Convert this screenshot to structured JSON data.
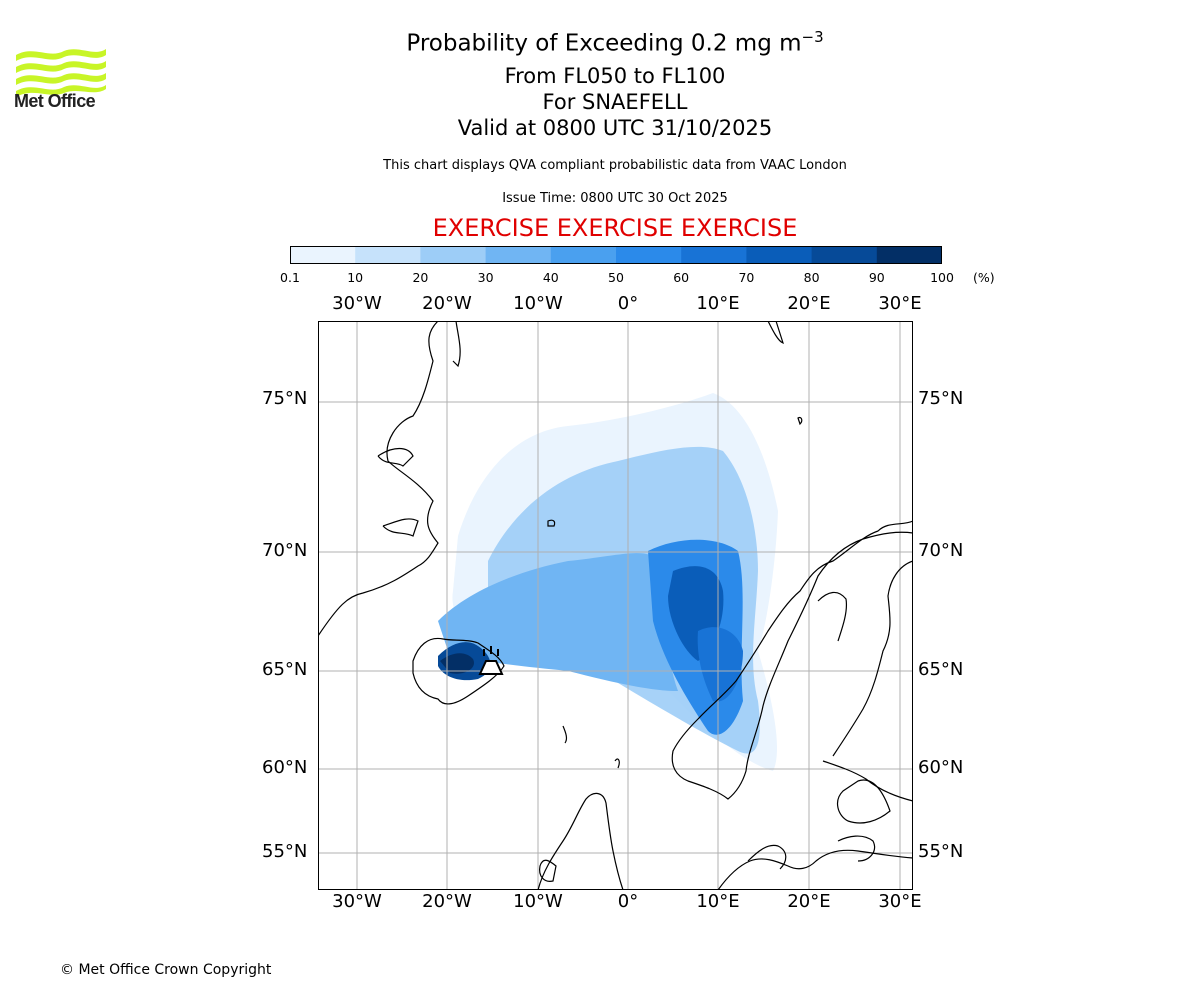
{
  "header": {
    "logo_text": "Met Office",
    "title_prefix": "Probability of Exceeding 0.2 mg m",
    "title_sup": "−3",
    "subtitle_levels": "From FL050 to FL100",
    "subtitle_volcano": "For SNAEFELL",
    "subtitle_valid": "Valid at 0800 UTC 31/10/2025",
    "description": "This chart displays QVA compliant probabilistic data from VAAC London",
    "issue_time": "Issue Time: 0800 UTC 30 Oct 2025",
    "exercise_banner": "EXERCISE EXERCISE EXERCISE"
  },
  "colorbar": {
    "unit": "(%)",
    "ticks": [
      "0.1",
      "10",
      "20",
      "30",
      "40",
      "50",
      "60",
      "70",
      "80",
      "90",
      "100"
    ],
    "colors": [
      "#eaf4fe",
      "#c6e2fb",
      "#9dcdf7",
      "#70b5f3",
      "#4aa0ef",
      "#2b8aea",
      "#1873d6",
      "#0a5db9",
      "#064a98",
      "#032f66"
    ]
  },
  "map": {
    "projection": "polar-stereographic",
    "longitude_labels": [
      "30°W",
      "20°W",
      "10°W",
      "0°",
      "10°E",
      "20°E",
      "30°E"
    ],
    "latitude_labels": [
      "75°N",
      "70°N",
      "65°N",
      "60°N",
      "55°N"
    ],
    "volcano_marker": "volcano-icon",
    "coast_color": "#000000",
    "grid_color": "#b0b0b0"
  },
  "footer": {
    "copyright": "© Met Office Crown Copyright"
  }
}
